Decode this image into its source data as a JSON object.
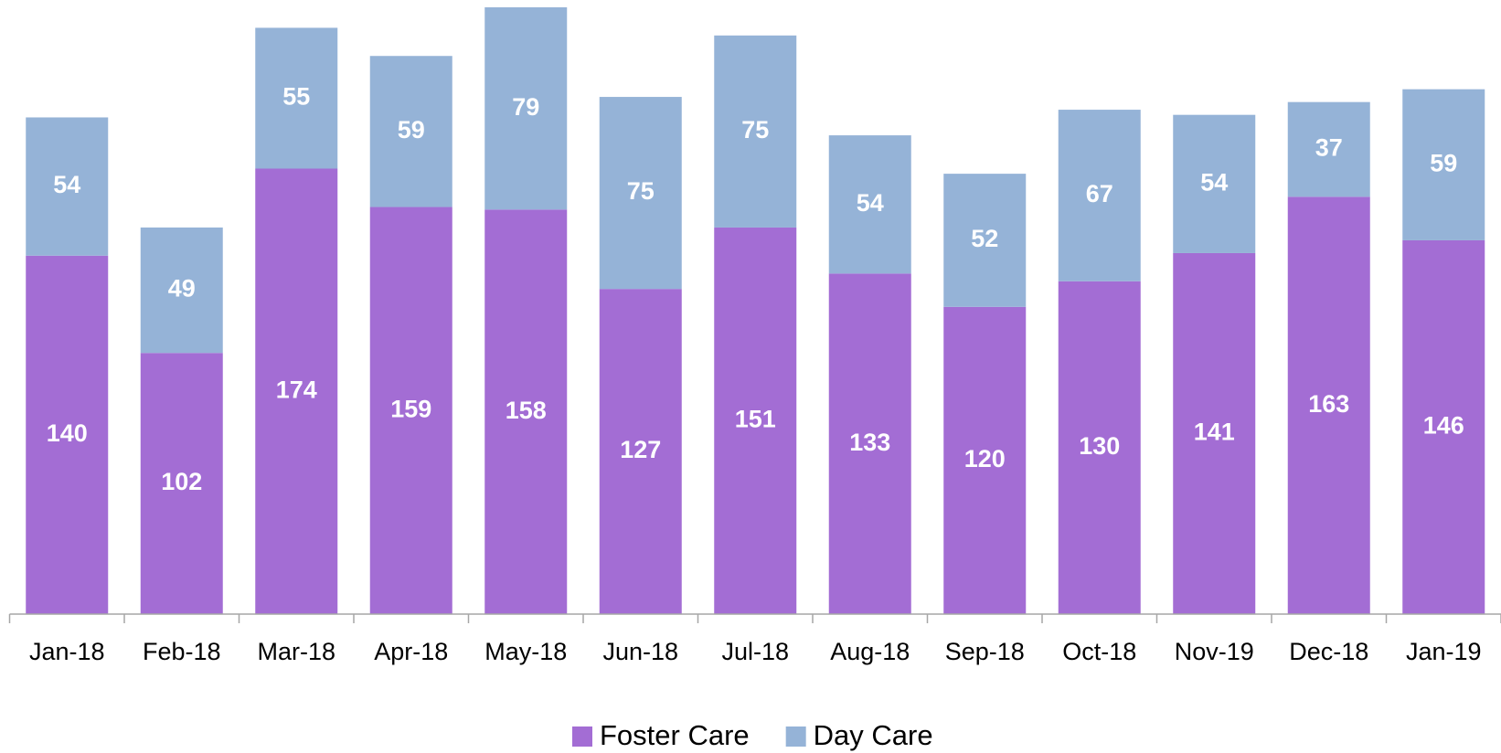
{
  "chart_data": {
    "type": "stacked_bar",
    "categories": [
      "Jan-18",
      "Feb-18",
      "Mar-18",
      "Apr-18",
      "May-18",
      "Jun-18",
      "Jul-18",
      "Aug-18",
      "Sep-18",
      "Oct-18",
      "Nov-19",
      "Dec-18",
      "Jan-19"
    ],
    "series": [
      {
        "name": "Foster Care",
        "color": "#a36dd4",
        "values": [
          140,
          102,
          174,
          159,
          158,
          127,
          151,
          133,
          120,
          130,
          141,
          163,
          146
        ]
      },
      {
        "name": "Day Care",
        "color": "#95b3d7",
        "values": [
          54,
          49,
          55,
          59,
          79,
          75,
          75,
          54,
          52,
          67,
          54,
          37,
          59
        ]
      }
    ],
    "legend": "bottom"
  }
}
